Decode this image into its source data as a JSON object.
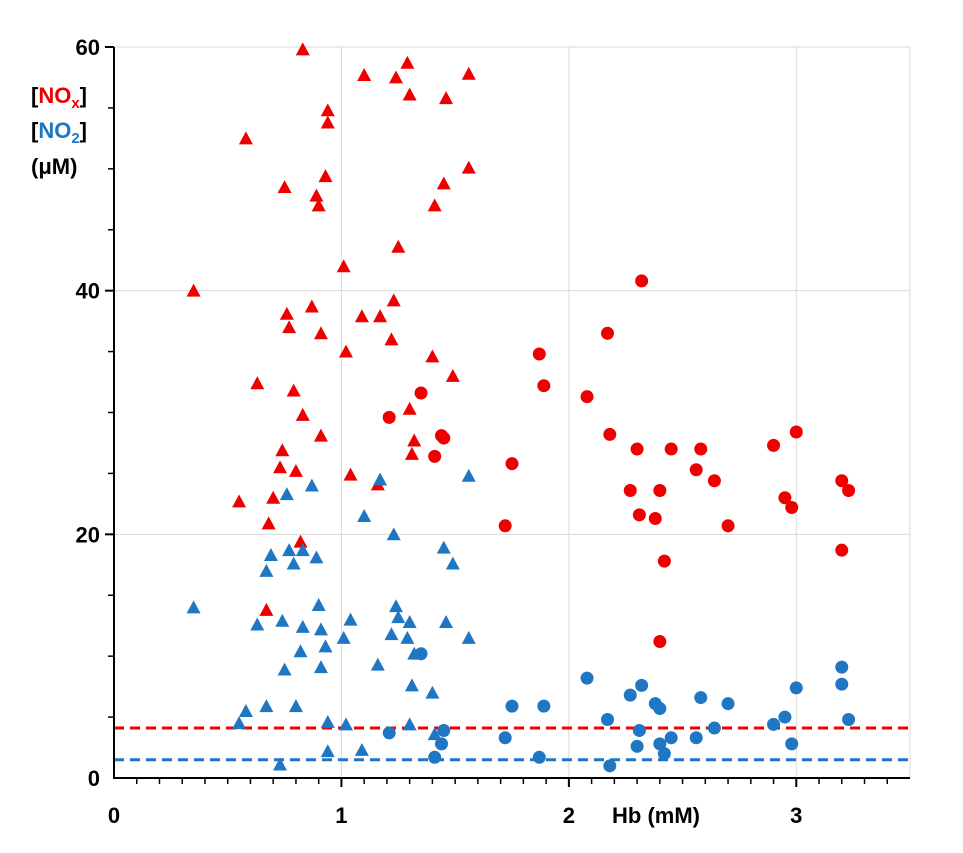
{
  "chart_data": {
    "type": "scatter",
    "xlabel": "Hb (mM)",
    "ylabel_lines": [
      {
        "open": "[",
        "species": "NO",
        "sub": "x",
        "close": "]",
        "color": "#ee0000"
      },
      {
        "open": "[",
        "species": "NO",
        "sub": "2",
        "close": "]",
        "color": "#1f77c4"
      },
      {
        "text": "(μM)",
        "color": "#000000"
      }
    ],
    "xlim": [
      0,
      3.5
    ],
    "ylim": [
      0,
      60
    ],
    "x_ticks": [
      0,
      1,
      2,
      3
    ],
    "x_tick_labels": [
      "0",
      "1",
      "2",
      "3"
    ],
    "y_ticks": [
      0,
      20,
      40,
      60
    ],
    "y_tick_labels": [
      "0",
      "20",
      "40",
      "60"
    ],
    "x_minor_step": 0.1,
    "y_minor_step": 5,
    "grid": true,
    "colors": {
      "nox": "#ee0000",
      "no2": "#1f77c4",
      "grid": "#d9d9d9",
      "axis": "#000000"
    },
    "reference_lines": [
      {
        "name": "NOx baseline",
        "y": 4.1,
        "color": "#ee0000",
        "style": "dashed"
      },
      {
        "name": "NO2 baseline",
        "y": 1.5,
        "color": "#1f77c4",
        "style": "dashed"
      }
    ],
    "series": [
      {
        "name": "NOx (triangles)",
        "marker": "triangle",
        "color": "#ee0000",
        "points": [
          [
            0.35,
            40.0
          ],
          [
            0.55,
            22.7
          ],
          [
            0.58,
            52.5
          ],
          [
            0.63,
            32.4
          ],
          [
            0.67,
            13.8
          ],
          [
            0.68,
            20.9
          ],
          [
            0.7,
            23.0
          ],
          [
            0.73,
            25.5
          ],
          [
            0.74,
            26.9
          ],
          [
            0.75,
            48.5
          ],
          [
            0.76,
            38.1
          ],
          [
            0.77,
            37.0
          ],
          [
            0.79,
            31.8
          ],
          [
            0.8,
            25.2
          ],
          [
            0.82,
            19.4
          ],
          [
            0.83,
            59.8
          ],
          [
            0.83,
            29.8
          ],
          [
            0.87,
            38.7
          ],
          [
            0.89,
            47.8
          ],
          [
            0.9,
            47.0
          ],
          [
            0.91,
            36.5
          ],
          [
            0.91,
            28.1
          ],
          [
            0.93,
            49.4
          ],
          [
            0.94,
            53.8
          ],
          [
            0.94,
            54.8
          ],
          [
            1.01,
            42.0
          ],
          [
            1.02,
            35.0
          ],
          [
            1.04,
            24.9
          ],
          [
            1.09,
            37.9
          ],
          [
            1.1,
            57.7
          ],
          [
            1.16,
            24.1
          ],
          [
            1.17,
            37.9
          ],
          [
            1.22,
            36.0
          ],
          [
            1.23,
            39.2
          ],
          [
            1.24,
            57.5
          ],
          [
            1.25,
            43.6
          ],
          [
            1.29,
            58.7
          ],
          [
            1.3,
            30.3
          ],
          [
            1.3,
            56.1
          ],
          [
            1.31,
            26.6
          ],
          [
            1.32,
            27.7
          ],
          [
            1.4,
            34.6
          ],
          [
            1.41,
            47.0
          ],
          [
            1.45,
            48.8
          ],
          [
            1.46,
            55.8
          ],
          [
            1.49,
            33.0
          ],
          [
            1.56,
            57.8
          ],
          [
            1.56,
            50.1
          ]
        ]
      },
      {
        "name": "NOx (circles)",
        "marker": "circle",
        "color": "#ee0000",
        "points": [
          [
            1.21,
            29.6
          ],
          [
            1.35,
            31.6
          ],
          [
            1.41,
            26.4
          ],
          [
            1.44,
            28.1
          ],
          [
            1.45,
            27.9
          ],
          [
            1.72,
            20.7
          ],
          [
            1.75,
            25.8
          ],
          [
            1.87,
            34.8
          ],
          [
            1.89,
            32.2
          ],
          [
            2.08,
            31.3
          ],
          [
            2.17,
            36.5
          ],
          [
            2.18,
            28.2
          ],
          [
            2.27,
            23.6
          ],
          [
            2.3,
            27.0
          ],
          [
            2.31,
            21.6
          ],
          [
            2.32,
            40.8
          ],
          [
            2.38,
            21.3
          ],
          [
            2.4,
            23.6
          ],
          [
            2.4,
            11.2
          ],
          [
            2.42,
            17.8
          ],
          [
            2.45,
            27.0
          ],
          [
            2.56,
            25.3
          ],
          [
            2.58,
            27.0
          ],
          [
            2.64,
            24.4
          ],
          [
            2.7,
            20.7
          ],
          [
            2.9,
            27.3
          ],
          [
            2.95,
            23.0
          ],
          [
            2.98,
            22.2
          ],
          [
            3.0,
            28.4
          ],
          [
            3.2,
            18.7
          ],
          [
            3.2,
            24.4
          ],
          [
            3.23,
            23.6
          ]
        ]
      },
      {
        "name": "NO2 (triangles)",
        "marker": "triangle",
        "color": "#1f77c4",
        "points": [
          [
            0.35,
            14.0
          ],
          [
            0.55,
            4.5
          ],
          [
            0.58,
            5.5
          ],
          [
            0.63,
            12.6
          ],
          [
            0.67,
            17.0
          ],
          [
            0.67,
            5.9
          ],
          [
            0.69,
            18.3
          ],
          [
            0.73,
            1.1
          ],
          [
            0.74,
            12.9
          ],
          [
            0.75,
            8.9
          ],
          [
            0.76,
            23.3
          ],
          [
            0.77,
            18.7
          ],
          [
            0.79,
            17.6
          ],
          [
            0.8,
            5.9
          ],
          [
            0.82,
            10.4
          ],
          [
            0.83,
            18.7
          ],
          [
            0.83,
            12.4
          ],
          [
            0.87,
            24.0
          ],
          [
            0.89,
            18.1
          ],
          [
            0.9,
            14.2
          ],
          [
            0.91,
            12.2
          ],
          [
            0.91,
            9.1
          ],
          [
            0.93,
            10.8
          ],
          [
            0.94,
            4.6
          ],
          [
            0.94,
            2.2
          ],
          [
            1.01,
            11.5
          ],
          [
            1.02,
            4.4
          ],
          [
            1.04,
            13.0
          ],
          [
            1.09,
            2.3
          ],
          [
            1.1,
            21.5
          ],
          [
            1.16,
            9.3
          ],
          [
            1.17,
            24.5
          ],
          [
            1.22,
            11.8
          ],
          [
            1.23,
            20.0
          ],
          [
            1.24,
            14.1
          ],
          [
            1.25,
            13.2
          ],
          [
            1.29,
            11.5
          ],
          [
            1.3,
            12.8
          ],
          [
            1.3,
            4.4
          ],
          [
            1.31,
            7.6
          ],
          [
            1.32,
            10.2
          ],
          [
            1.4,
            7.0
          ],
          [
            1.41,
            3.6
          ],
          [
            1.45,
            18.9
          ],
          [
            1.46,
            12.8
          ],
          [
            1.49,
            17.6
          ],
          [
            1.56,
            24.8
          ],
          [
            1.56,
            11.5
          ]
        ]
      },
      {
        "name": "NO2 (circles)",
        "marker": "circle",
        "color": "#1f77c4",
        "points": [
          [
            1.21,
            3.7
          ],
          [
            1.35,
            10.2
          ],
          [
            1.41,
            1.7
          ],
          [
            1.44,
            2.8
          ],
          [
            1.45,
            3.9
          ],
          [
            1.72,
            3.3
          ],
          [
            1.75,
            5.9
          ],
          [
            1.87,
            1.7
          ],
          [
            1.89,
            5.9
          ],
          [
            2.08,
            8.2
          ],
          [
            2.17,
            4.8
          ],
          [
            2.18,
            1.0
          ],
          [
            2.27,
            6.8
          ],
          [
            2.3,
            2.6
          ],
          [
            2.31,
            3.9
          ],
          [
            2.32,
            7.6
          ],
          [
            2.38,
            6.1
          ],
          [
            2.4,
            5.7
          ],
          [
            2.4,
            2.8
          ],
          [
            2.42,
            2.0
          ],
          [
            2.45,
            3.3
          ],
          [
            2.56,
            3.3
          ],
          [
            2.58,
            6.6
          ],
          [
            2.64,
            4.1
          ],
          [
            2.7,
            6.1
          ],
          [
            2.9,
            4.4
          ],
          [
            2.95,
            5.0
          ],
          [
            2.98,
            2.8
          ],
          [
            3.0,
            7.4
          ],
          [
            3.2,
            9.1
          ],
          [
            3.2,
            7.7
          ],
          [
            3.23,
            4.8
          ]
        ]
      }
    ]
  }
}
